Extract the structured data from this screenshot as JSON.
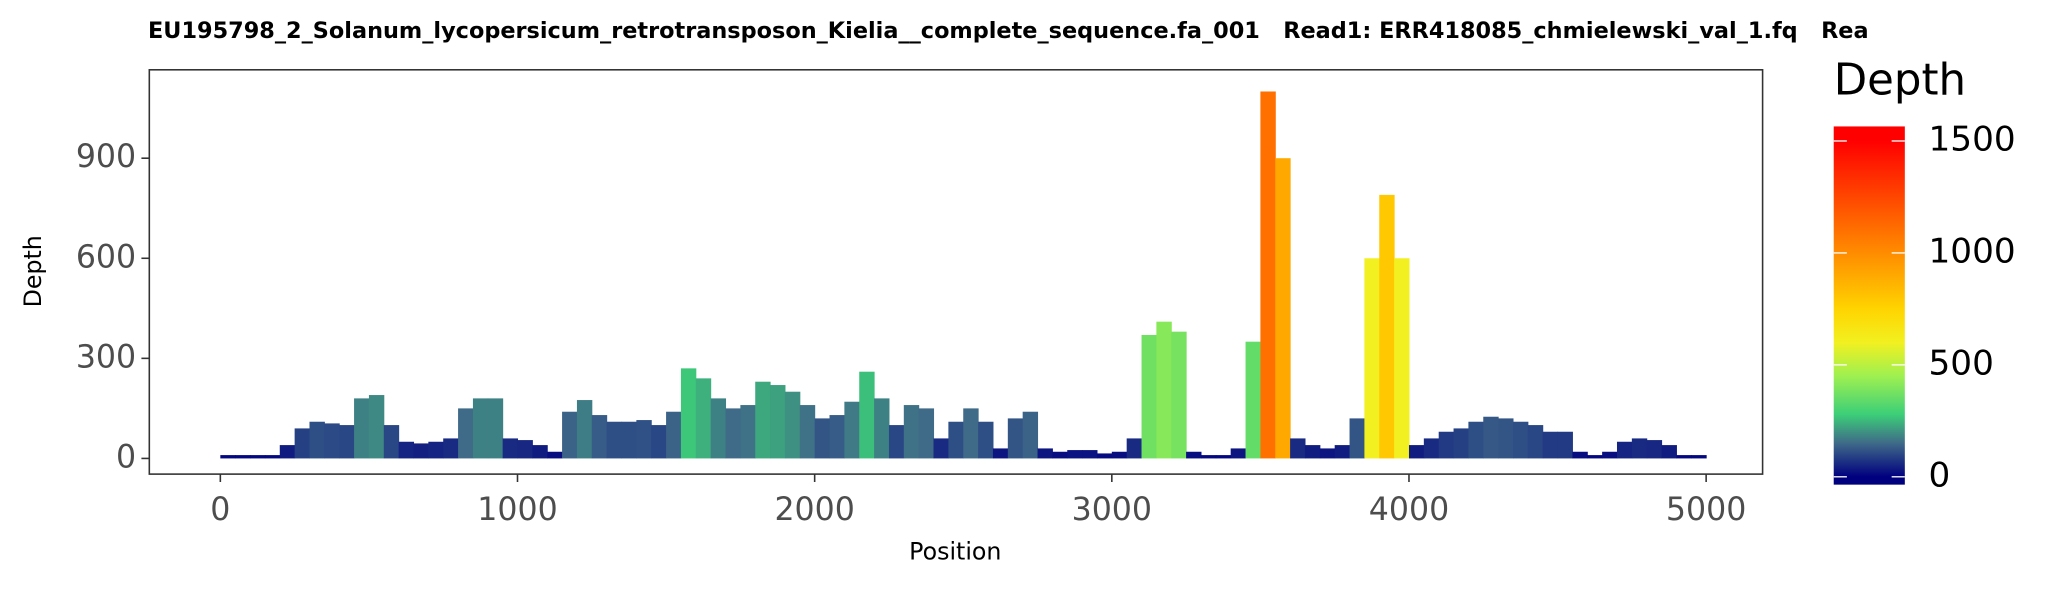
{
  "chart_data": {
    "type": "area",
    "title": "EU195798_2_Solanum_lycopersicum_retrotransposon_Kielia__complete_sequence.fa_001   Read1: ERR418085_chmielewski_val_1.fq   Rea",
    "x_label": "Position",
    "y_label": "Depth",
    "legend_title": "Depth",
    "step": 50,
    "x": [
      0,
      50,
      100,
      150,
      200,
      250,
      300,
      350,
      400,
      450,
      500,
      550,
      600,
      650,
      700,
      750,
      800,
      850,
      900,
      950,
      1000,
      1050,
      1100,
      1150,
      1200,
      1250,
      1300,
      1350,
      1400,
      1450,
      1500,
      1550,
      1600,
      1650,
      1700,
      1750,
      1800,
      1850,
      1900,
      1950,
      2000,
      2050,
      2100,
      2150,
      2200,
      2250,
      2300,
      2350,
      2400,
      2450,
      2500,
      2550,
      2600,
      2650,
      2700,
      2750,
      2800,
      2850,
      2900,
      2950,
      3000,
      3050,
      3100,
      3150,
      3200,
      3250,
      3300,
      3350,
      3400,
      3450,
      3500,
      3550,
      3600,
      3650,
      3700,
      3750,
      3800,
      3850,
      3900,
      3950,
      4000,
      4050,
      4100,
      4150,
      4200,
      4250,
      4300,
      4350,
      4400,
      4450,
      4500,
      4550,
      4600,
      4650,
      4700,
      4750,
      4800,
      4850,
      4900,
      4950
    ],
    "values": [
      10,
      10,
      10,
      10,
      40,
      90,
      110,
      105,
      100,
      180,
      190,
      100,
      50,
      45,
      50,
      60,
      150,
      180,
      180,
      60,
      55,
      40,
      20,
      140,
      175,
      130,
      110,
      110,
      115,
      100,
      140,
      270,
      240,
      180,
      150,
      160,
      230,
      220,
      200,
      160,
      120,
      130,
      170,
      260,
      180,
      100,
      160,
      150,
      60,
      110,
      150,
      110,
      30,
      120,
      140,
      30,
      20,
      25,
      25,
      15,
      20,
      60,
      370,
      410,
      380,
      20,
      10,
      10,
      30,
      350,
      1100,
      900,
      60,
      40,
      30,
      40,
      120,
      600,
      790,
      600,
      40,
      60,
      80,
      90,
      110,
      125,
      120,
      110,
      100,
      80,
      80,
      20,
      10,
      20,
      50,
      60,
      55,
      40,
      10,
      10
    ],
    "xlim": [
      -239,
      5190
    ],
    "ylim": [
      -47,
      1165
    ],
    "xticks": [
      0,
      1000,
      2000,
      3000,
      4000,
      5000
    ],
    "yticks": [
      0,
      300,
      600,
      900
    ],
    "colorlim": [
      -35,
      1565
    ],
    "colorticks": [
      0,
      500,
      1000,
      1500
    ],
    "color_stops": [
      {
        "value": 0,
        "color": "#00007f"
      },
      {
        "value": 150,
        "color": "#3f6a88"
      },
      {
        "value": 280,
        "color": "#3ccf78"
      },
      {
        "value": 450,
        "color": "#9ef050"
      },
      {
        "value": 600,
        "color": "#f2f020"
      },
      {
        "value": 750,
        "color": "#ffd400"
      },
      {
        "value": 1000,
        "color": "#ff8c00"
      },
      {
        "value": 1500,
        "color": "#ff0000"
      }
    ]
  }
}
